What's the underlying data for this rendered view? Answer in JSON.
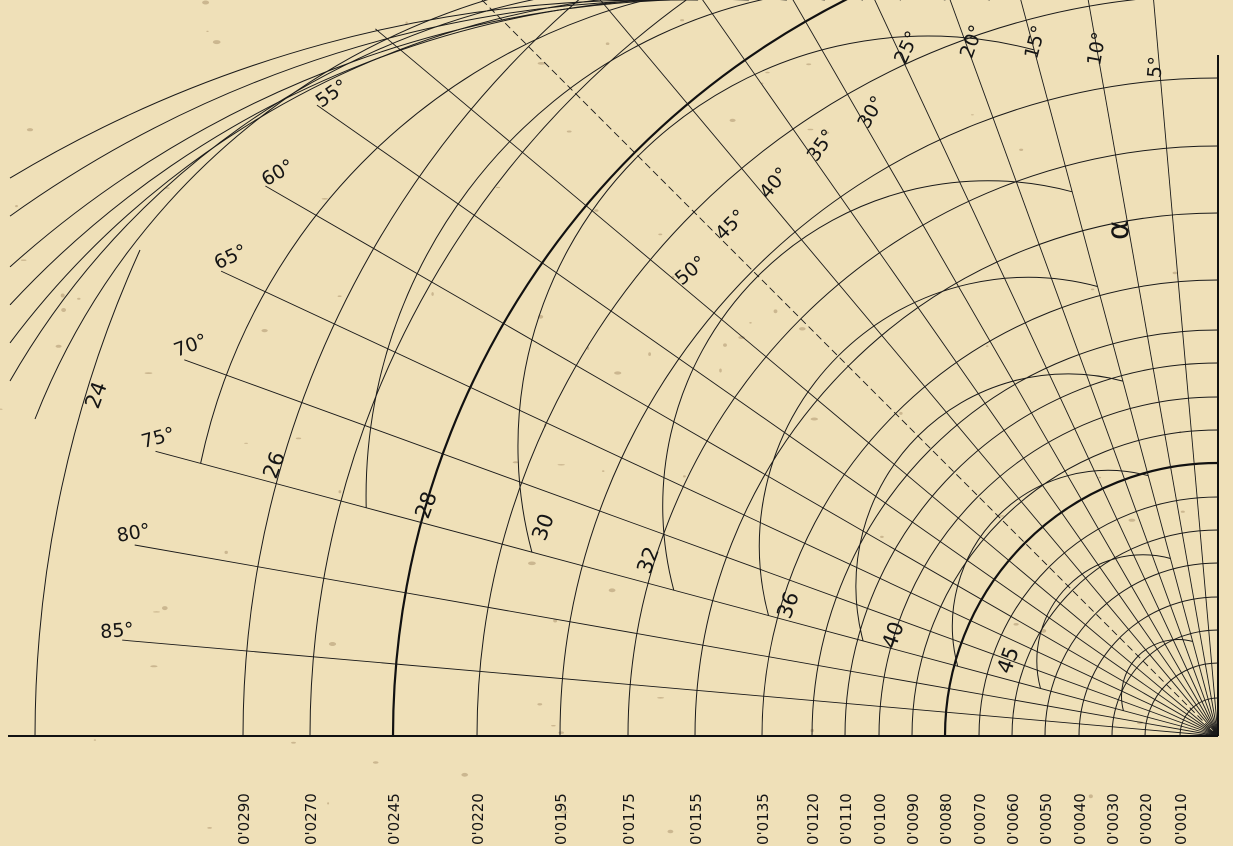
{
  "radius_scale_labels": [
    "0'0010",
    "0'0020",
    "0'0030",
    "0'0040",
    "0'0050",
    "0'0060",
    "0'0070",
    "0'0080",
    "0'0090",
    "0'0100",
    "0'0110",
    "0'0120",
    "0'0135",
    "0'0155",
    "0'0175",
    "0'0195",
    "0'0220",
    "0'0245",
    "0'0270",
    "0'0290"
  ],
  "angle_labels": [
    "5°",
    "10°",
    "15°",
    "20°",
    "25°",
    "30°",
    "35°",
    "40°",
    "45°",
    "50°",
    "55°",
    "60°",
    "65°",
    "70°",
    "75°",
    "80°",
    "85°"
  ],
  "alpha_symbol": "α",
  "curve_labels": [
    "24",
    "26",
    "28",
    "30",
    "32",
    "36",
    "40",
    "45"
  ],
  "colors": {
    "paper": "#efe0b8",
    "ink": "#1a1a1a"
  }
}
